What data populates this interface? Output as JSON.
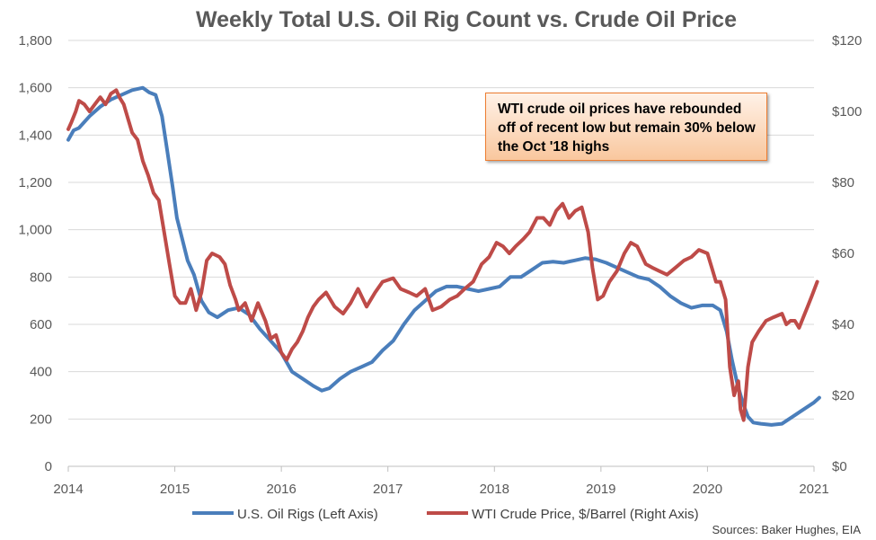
{
  "chart_data": {
    "type": "line",
    "title": "Weekly Total U.S. Oil Rig Count vs. Crude Oil Price",
    "x_ticks": [
      "2014",
      "2015",
      "2016",
      "2017",
      "2018",
      "2019",
      "2020",
      "2021"
    ],
    "y_left": {
      "ylim": [
        0,
        1800
      ],
      "ticks": [
        "0",
        "200",
        "400",
        "600",
        "800",
        "1,000",
        "1,200",
        "1,400",
        "1,600",
        "1,800"
      ]
    },
    "y_right": {
      "ylim": [
        0,
        120
      ],
      "ticks": [
        "$0",
        "$20",
        "$40",
        "$60",
        "$80",
        "$100",
        "$120"
      ]
    },
    "grid": true,
    "legend_position": "bottom",
    "annotation": "WTI crude oil prices have rebounded off of recent low but remain 30% below the Oct '18 highs",
    "source": "Sources: Baker Hughes, EIA",
    "series": [
      {
        "name": "U.S. Oil Rigs (Left Axis)",
        "axis": "left",
        "color": "#4A7EBB",
        "x": [
          2014.0,
          2014.05,
          2014.1,
          2014.2,
          2014.3,
          2014.4,
          2014.5,
          2014.6,
          2014.7,
          2014.76,
          2014.82,
          2014.88,
          2014.93,
          2014.98,
          2015.02,
          2015.07,
          2015.12,
          2015.18,
          2015.25,
          2015.32,
          2015.4,
          2015.5,
          2015.6,
          2015.7,
          2015.8,
          2015.9,
          2016.0,
          2016.1,
          2016.2,
          2016.3,
          2016.38,
          2016.45,
          2016.55,
          2016.65,
          2016.75,
          2016.85,
          2016.95,
          2017.05,
          2017.15,
          2017.25,
          2017.35,
          2017.45,
          2017.55,
          2017.65,
          2017.75,
          2017.85,
          2017.95,
          2018.05,
          2018.15,
          2018.25,
          2018.35,
          2018.45,
          2018.55,
          2018.65,
          2018.75,
          2018.85,
          2018.95,
          2019.05,
          2019.15,
          2019.25,
          2019.35,
          2019.45,
          2019.55,
          2019.65,
          2019.75,
          2019.85,
          2019.95,
          2020.05,
          2020.12,
          2020.18,
          2020.23,
          2020.28,
          2020.33,
          2020.38,
          2020.43,
          2020.5,
          2020.6,
          2020.7,
          2020.8,
          2020.9,
          2021.0,
          2021.05
        ],
        "values": [
          1380,
          1420,
          1430,
          1480,
          1520,
          1550,
          1570,
          1590,
          1600,
          1580,
          1570,
          1480,
          1330,
          1180,
          1050,
          960,
          870,
          810,
          700,
          650,
          630,
          660,
          670,
          640,
          580,
          530,
          480,
          400,
          370,
          340,
          320,
          330,
          370,
          400,
          420,
          440,
          490,
          530,
          600,
          660,
          700,
          740,
          760,
          760,
          750,
          740,
          750,
          760,
          800,
          800,
          830,
          860,
          865,
          860,
          870,
          880,
          875,
          860,
          840,
          820,
          800,
          790,
          760,
          720,
          690,
          670,
          680,
          680,
          660,
          570,
          450,
          350,
          270,
          210,
          185,
          180,
          175,
          180,
          210,
          240,
          270,
          290
        ]
      },
      {
        "name": "WTI Crude Price, $/Barrel (Right Axis)",
        "axis": "right",
        "color": "#BE4B48",
        "x": [
          2014.0,
          2014.03,
          2014.07,
          2014.1,
          2014.15,
          2014.2,
          2014.25,
          2014.3,
          2014.35,
          2014.4,
          2014.45,
          2014.48,
          2014.52,
          2014.56,
          2014.6,
          2014.65,
          2014.7,
          2014.75,
          2014.8,
          2014.85,
          2014.9,
          2014.95,
          2015.0,
          2015.05,
          2015.1,
          2015.15,
          2015.2,
          2015.25,
          2015.3,
          2015.35,
          2015.42,
          2015.47,
          2015.52,
          2015.57,
          2015.6,
          2015.66,
          2015.72,
          2015.78,
          2015.85,
          2015.9,
          2015.95,
          2016.0,
          2016.05,
          2016.1,
          2016.15,
          2016.2,
          2016.25,
          2016.3,
          2016.35,
          2016.42,
          2016.5,
          2016.58,
          2016.65,
          2016.72,
          2016.8,
          2016.88,
          2016.95,
          2017.05,
          2017.12,
          2017.2,
          2017.27,
          2017.35,
          2017.42,
          2017.5,
          2017.58,
          2017.65,
          2017.72,
          2017.8,
          2017.88,
          2017.95,
          2018.02,
          2018.08,
          2018.14,
          2018.2,
          2018.27,
          2018.33,
          2018.4,
          2018.46,
          2018.52,
          2018.58,
          2018.64,
          2018.7,
          2018.76,
          2018.82,
          2018.88,
          2018.92,
          2018.97,
          2019.02,
          2019.08,
          2019.15,
          2019.22,
          2019.28,
          2019.34,
          2019.42,
          2019.48,
          2019.55,
          2019.62,
          2019.7,
          2019.78,
          2019.85,
          2019.92,
          2020.0,
          2020.04,
          2020.08,
          2020.12,
          2020.17,
          2020.21,
          2020.25,
          2020.29,
          2020.31,
          2020.34,
          2020.38,
          2020.42,
          2020.48,
          2020.55,
          2020.62,
          2020.7,
          2020.74,
          2020.78,
          2020.82,
          2020.86,
          2020.9,
          2020.94,
          2020.98,
          2021.03
        ],
        "values": [
          95,
          97,
          100,
          103,
          102,
          100,
          102,
          104,
          102,
          105,
          106,
          104,
          102,
          98,
          94,
          92,
          86,
          82,
          77,
          75,
          66,
          57,
          48,
          46,
          46,
          50,
          44,
          49,
          58,
          60,
          59,
          57,
          51,
          47,
          44,
          46,
          41,
          46,
          41,
          36,
          37,
          32,
          30,
          33,
          35,
          38,
          42,
          45,
          47,
          49,
          45,
          43,
          46,
          50,
          45,
          49,
          52,
          53,
          50,
          49,
          48,
          50,
          44,
          45,
          47,
          48,
          50,
          52,
          57,
          59,
          63,
          62,
          60,
          62,
          64,
          66,
          70,
          70,
          68,
          72,
          74,
          70,
          72,
          73,
          66,
          56,
          47,
          48,
          52,
          55,
          60,
          63,
          62,
          57,
          56,
          55,
          54,
          56,
          58,
          59,
          61,
          60,
          56,
          52,
          52,
          47,
          28,
          20,
          24,
          16,
          13,
          28,
          35,
          38,
          41,
          42,
          43,
          40,
          41,
          41,
          39,
          42,
          45,
          48,
          52
        ]
      }
    ]
  }
}
